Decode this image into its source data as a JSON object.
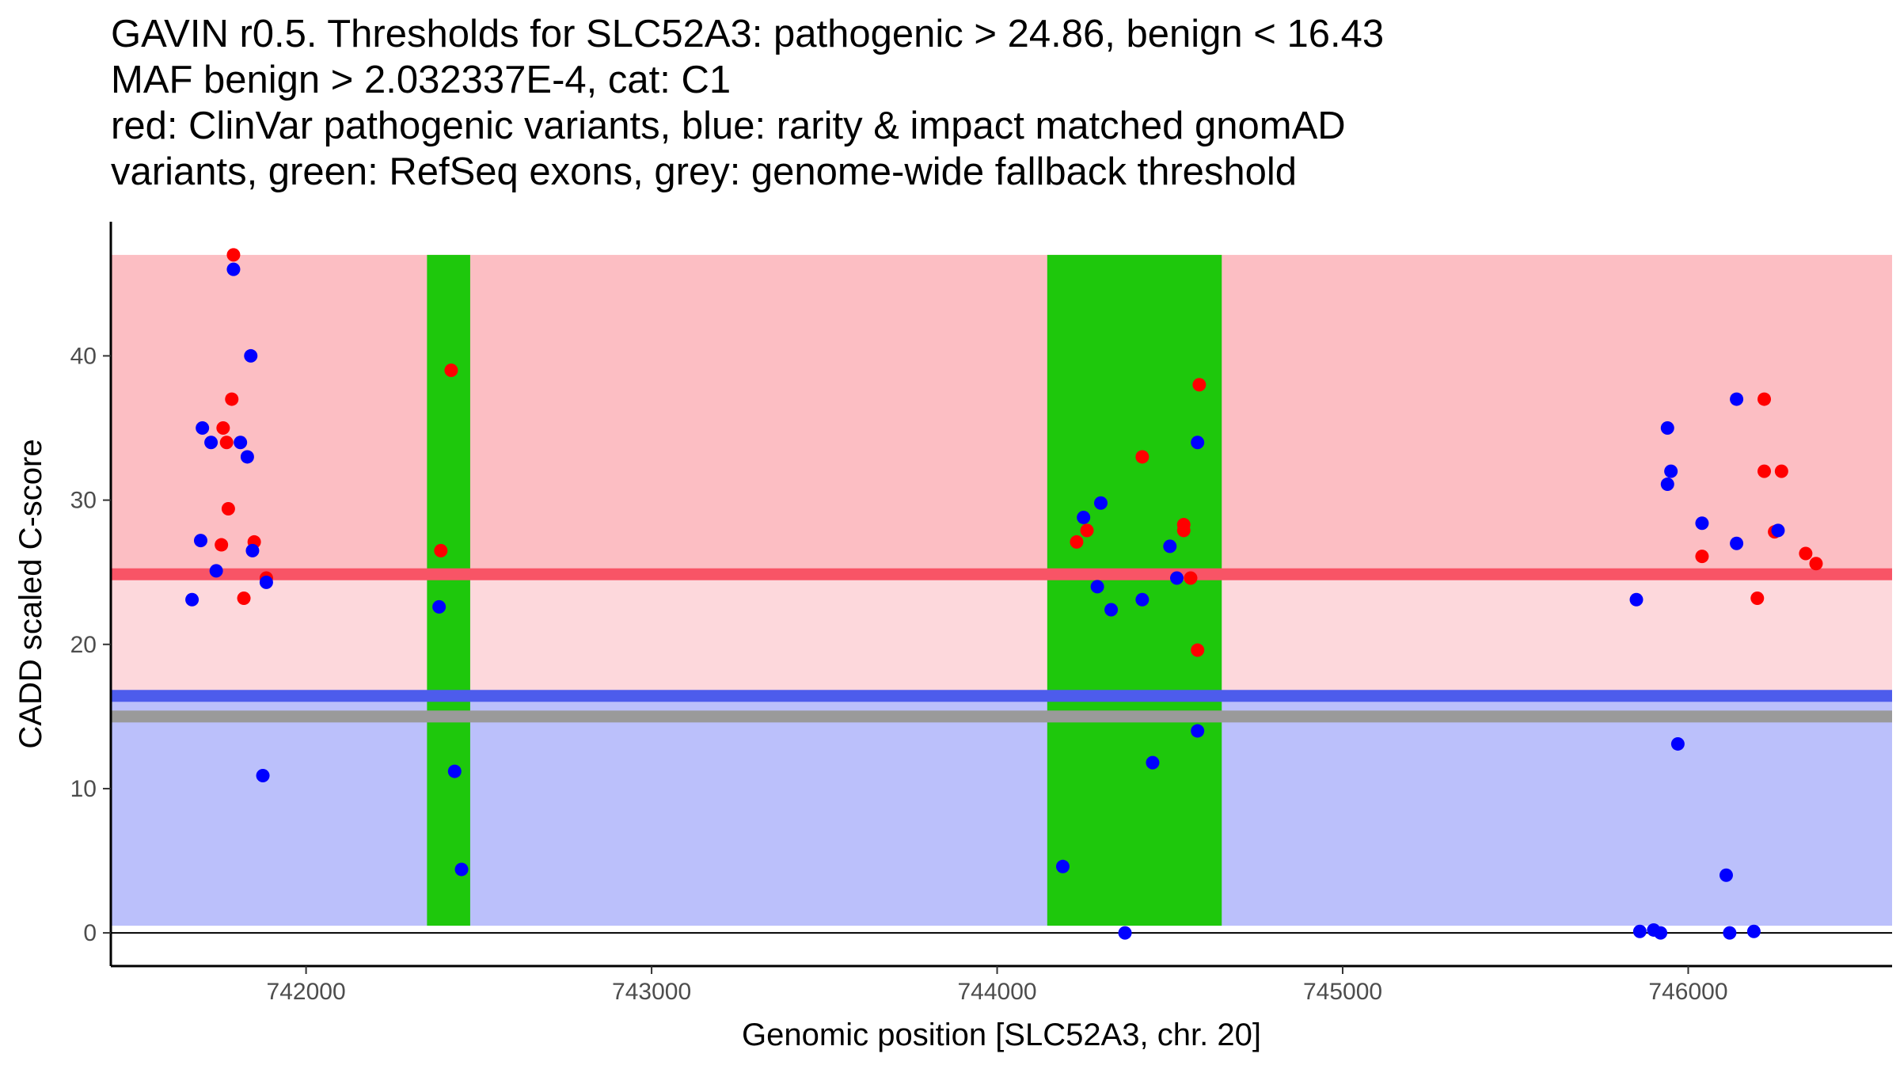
{
  "title_lines": [
    "GAVIN r0.5. Thresholds for SLC52A3: pathogenic > 24.86, benign < 16.43",
    "MAF benign > 2.032337E-4, cat: C1",
    "red: ClinVar pathogenic variants, blue: rarity & impact matched gnomAD",
    "variants, green: RefSeq exons, grey: genome-wide fallback threshold"
  ],
  "chart_data": {
    "type": "scatter",
    "xlabel": "Genomic position [SLC52A3, chr. 20]",
    "ylabel": "CADD scaled C-score",
    "xlim": [
      741435,
      746590
    ],
    "ylim": [
      -2.3,
      49.3
    ],
    "x_ticks": [
      742000,
      743000,
      744000,
      745000,
      746000
    ],
    "y_ticks": [
      0,
      10,
      20,
      30,
      40
    ],
    "grid": false,
    "thresholds": {
      "pathogenic": 24.86,
      "benign": 16.43,
      "fallback": 15.0,
      "region_top": 47,
      "region_bottom": 0.5
    },
    "exons": [
      {
        "start": 742350,
        "end": 742475
      },
      {
        "start": 744145,
        "end": 744650
      }
    ],
    "colors": {
      "pathogenic_region": "#fcbec3",
      "intermediate_region": "#fdd8dc",
      "benign_region": "#bbc0fb",
      "pathogenic_line": "#f85466",
      "benign_line": "#4d5cec",
      "fallback_line": "#9a9a9a",
      "exon": "#1ec80c",
      "pathogenic_point": "#ff0000",
      "benign_point": "#0000ff"
    },
    "series": [
      {
        "name": "ClinVar pathogenic variants",
        "color": "#ff0000",
        "points": [
          [
            741790,
            47.0
          ],
          [
            741785,
            37.0
          ],
          [
            741760,
            35.0
          ],
          [
            741770,
            34.0
          ],
          [
            741775,
            29.4
          ],
          [
            741755,
            26.9
          ],
          [
            741850,
            27.1
          ],
          [
            741820,
            23.2
          ],
          [
            741885,
            24.6
          ],
          [
            742420,
            39.0
          ],
          [
            742390,
            26.5
          ],
          [
            744420,
            33.0
          ],
          [
            744585,
            38.0
          ],
          [
            744540,
            28.3
          ],
          [
            744540,
            27.9
          ],
          [
            744230,
            27.1
          ],
          [
            744260,
            27.9
          ],
          [
            744560,
            24.6
          ],
          [
            744580,
            19.6
          ],
          [
            746220,
            37.0
          ],
          [
            746220,
            32.0
          ],
          [
            746270,
            32.0
          ],
          [
            746040,
            26.1
          ],
          [
            746200,
            23.2
          ],
          [
            746250,
            27.8
          ],
          [
            746340,
            26.3
          ],
          [
            746370,
            25.6
          ]
        ]
      },
      {
        "name": "rarity & impact matched gnomAD variants",
        "color": "#0000ff",
        "points": [
          [
            741790,
            46.0
          ],
          [
            741840,
            40.0
          ],
          [
            741700,
            35.0
          ],
          [
            741725,
            34.0
          ],
          [
            741810,
            34.0
          ],
          [
            741830,
            33.0
          ],
          [
            741695,
            27.2
          ],
          [
            741845,
            26.5
          ],
          [
            741740,
            25.1
          ],
          [
            741885,
            24.3
          ],
          [
            741670,
            23.1
          ],
          [
            741875,
            10.9
          ],
          [
            742385,
            22.6
          ],
          [
            742430,
            11.2
          ],
          [
            742450,
            4.4
          ],
          [
            744300,
            29.8
          ],
          [
            744250,
            28.8
          ],
          [
            744290,
            24.0
          ],
          [
            744330,
            22.4
          ],
          [
            744420,
            23.1
          ],
          [
            744500,
            26.8
          ],
          [
            744520,
            24.6
          ],
          [
            744580,
            34.0
          ],
          [
            744580,
            14.0
          ],
          [
            744450,
            11.8
          ],
          [
            744190,
            4.6
          ],
          [
            744370,
            0.0
          ],
          [
            745940,
            35.0
          ],
          [
            745950,
            32.0
          ],
          [
            745940,
            31.1
          ],
          [
            746140,
            37.0
          ],
          [
            746040,
            28.4
          ],
          [
            746140,
            27.0
          ],
          [
            746260,
            27.9
          ],
          [
            745850,
            23.1
          ],
          [
            745970,
            13.1
          ],
          [
            746110,
            4.0
          ],
          [
            745860,
            0.1
          ],
          [
            745900,
            0.2
          ],
          [
            745920,
            0.0
          ],
          [
            746120,
            0.0
          ],
          [
            746190,
            0.1
          ]
        ]
      }
    ]
  }
}
